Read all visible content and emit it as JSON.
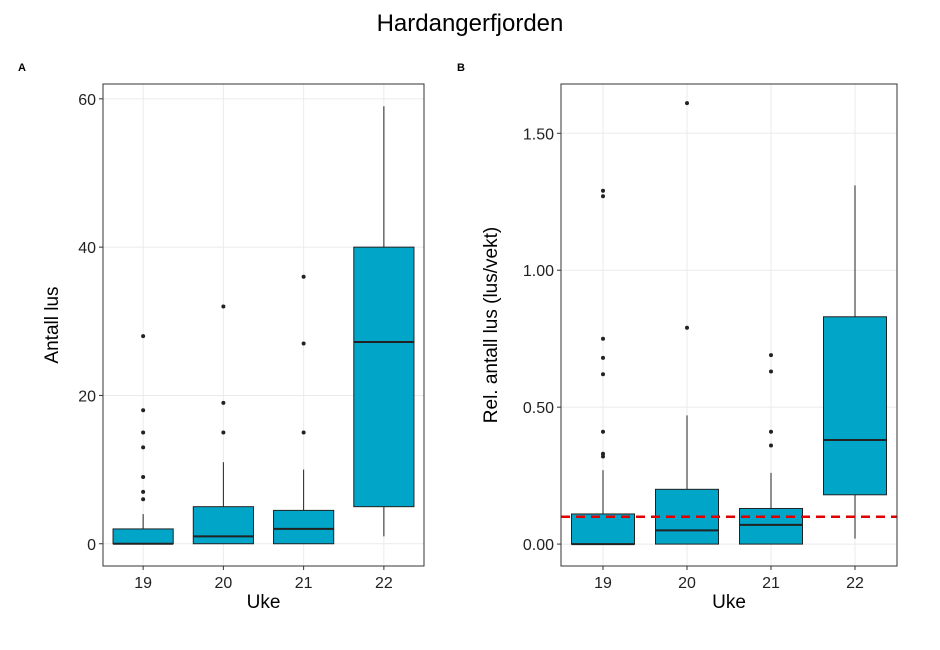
{
  "title": "Hardangerfjorden",
  "colors": {
    "box_fill": "#00A5C8",
    "threshold": "#E00000",
    "grid": "#EBEBEB",
    "frame": "#333333"
  },
  "chart_data": [
    {
      "panel": "A",
      "type": "box",
      "xlabel": "Uke",
      "ylabel": "Antall lus",
      "categories": [
        "19",
        "20",
        "21",
        "22"
      ],
      "ylim": [
        -3,
        62
      ],
      "yticks": [
        0,
        20,
        40,
        60
      ],
      "ytick_labels": [
        "0",
        "20",
        "40",
        "60"
      ],
      "grid": true,
      "boxes": [
        {
          "q1": 0,
          "median": 0,
          "q3": 2,
          "whisker_low": 0,
          "whisker_high": 4,
          "outliers": [
            6,
            7,
            9,
            13,
            15,
            18,
            28
          ]
        },
        {
          "q1": 0,
          "median": 1,
          "q3": 5,
          "whisker_low": 0,
          "whisker_high": 11,
          "outliers": [
            15,
            19,
            32
          ]
        },
        {
          "q1": 0,
          "median": 2,
          "q3": 4.5,
          "whisker_low": 0,
          "whisker_high": 10,
          "outliers": [
            15,
            27,
            36
          ]
        },
        {
          "q1": 5,
          "median": 27.2,
          "q3": 40,
          "whisker_low": 1,
          "whisker_high": 59,
          "outliers": []
        }
      ]
    },
    {
      "panel": "B",
      "type": "box",
      "xlabel": "Uke",
      "ylabel": "Rel. antall lus (lus/vekt)",
      "categories": [
        "19",
        "20",
        "21",
        "22"
      ],
      "ylim": [
        -0.08,
        1.68
      ],
      "yticks": [
        0,
        0.5,
        1.0,
        1.5
      ],
      "ytick_labels": [
        "0.00",
        "0.50",
        "1.00",
        "1.50"
      ],
      "grid": true,
      "reference_line": {
        "y": 0.1,
        "style": "dashed"
      },
      "boxes": [
        {
          "q1": 0,
          "median": 0,
          "q3": 0.11,
          "whisker_low": 0,
          "whisker_high": 0.27,
          "outliers": [
            0.32,
            0.33,
            0.41,
            0.62,
            0.68,
            0.75,
            1.27,
            1.29
          ]
        },
        {
          "q1": 0,
          "median": 0.05,
          "q3": 0.2,
          "whisker_low": 0,
          "whisker_high": 0.47,
          "outliers": [
            0.79,
            1.61
          ]
        },
        {
          "q1": 0,
          "median": 0.07,
          "q3": 0.13,
          "whisker_low": 0,
          "whisker_high": 0.26,
          "outliers": [
            0.36,
            0.41,
            0.63,
            0.69
          ]
        },
        {
          "q1": 0.18,
          "median": 0.38,
          "q3": 0.83,
          "whisker_low": 0.02,
          "whisker_high": 1.31,
          "outliers": []
        }
      ]
    }
  ]
}
